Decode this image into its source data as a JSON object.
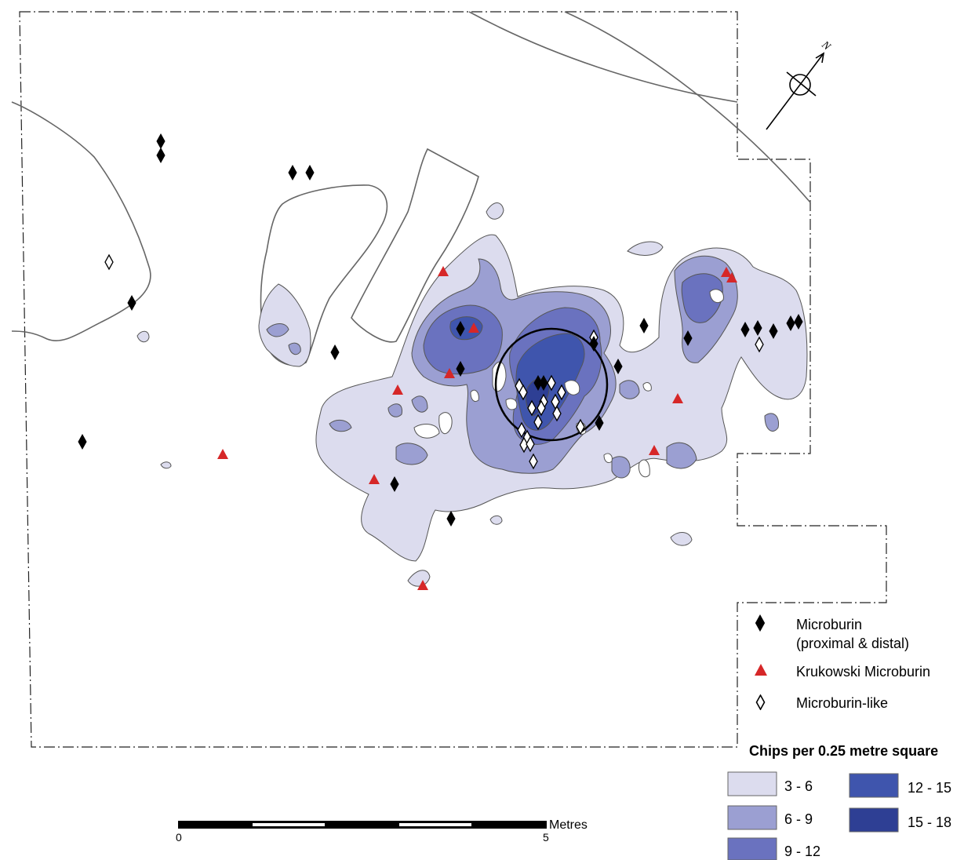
{
  "symbols_legend": {
    "items": [
      {
        "key": "microburin",
        "label_line1": "Microburin",
        "label_line2": "(proximal & distal)"
      },
      {
        "key": "krukowski",
        "label_line1": "Krukowski Microburin"
      },
      {
        "key": "microburin_like",
        "label_line1": "Microburin-like"
      }
    ]
  },
  "density_legend": {
    "title": "Chips per 0.25 metre square",
    "classes": [
      {
        "range": "3 - 6",
        "color": "#dcdcee"
      },
      {
        "range": "6 - 9",
        "color": "#9b9fd2"
      },
      {
        "range": "9 - 12",
        "color": "#6a72bf"
      },
      {
        "range": "12 - 15",
        "color": "#3f55ad"
      },
      {
        "range": "15 - 18",
        "color": "#2e3f94"
      }
    ]
  },
  "scale_bar": {
    "start_label": "0",
    "end_label": "5",
    "unit_label": "Metres"
  },
  "north_arrow": {
    "label": "N"
  },
  "colors": {
    "microburin": "#000000",
    "krukowski": "#d62728",
    "microburin_like": "#ffffff"
  },
  "finds": {
    "microburin_count": 32,
    "krukowski_count": 14,
    "microburin_like_count": 19
  }
}
